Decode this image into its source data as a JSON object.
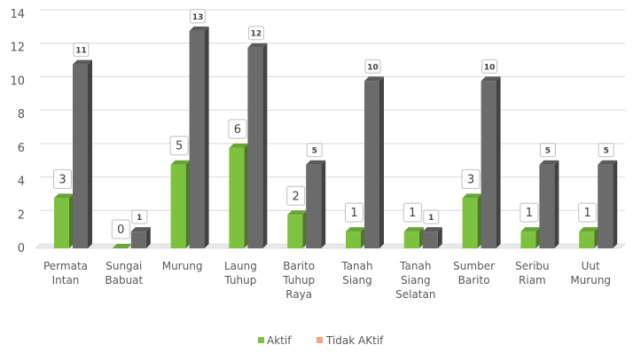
{
  "chart_data": {
    "type": "bar",
    "style": "3d-clustered",
    "categories": [
      [
        "Permata",
        "Intan"
      ],
      [
        "Sungai",
        "Babuat"
      ],
      [
        "Murung"
      ],
      [
        "Laung",
        "Tuhup"
      ],
      [
        "Barito",
        "Tuhup",
        "Raya"
      ],
      [
        "Tanah",
        "Siang"
      ],
      [
        "Tanah",
        "Siang",
        "Selatan"
      ],
      [
        "Sumber",
        "Barito"
      ],
      [
        "Seribu",
        "Riam"
      ],
      [
        "Uut",
        "Murung"
      ]
    ],
    "series": [
      {
        "name": "Aktif",
        "color": "#7cc23f",
        "values": [
          3,
          0,
          5,
          6,
          2,
          1,
          1,
          3,
          1,
          1
        ]
      },
      {
        "name": "Tidak AKtif",
        "color": "#6b6b6b",
        "legend_color": "#f4a582",
        "values": [
          11,
          1,
          13,
          12,
          5,
          10,
          1,
          10,
          5,
          5
        ]
      }
    ],
    "ylim": [
      0,
      14
    ],
    "yticks": [
      "0",
      "2",
      "4",
      "6",
      "8",
      "10",
      "12",
      "14"
    ],
    "grid": true,
    "legend_position": "bottom"
  }
}
